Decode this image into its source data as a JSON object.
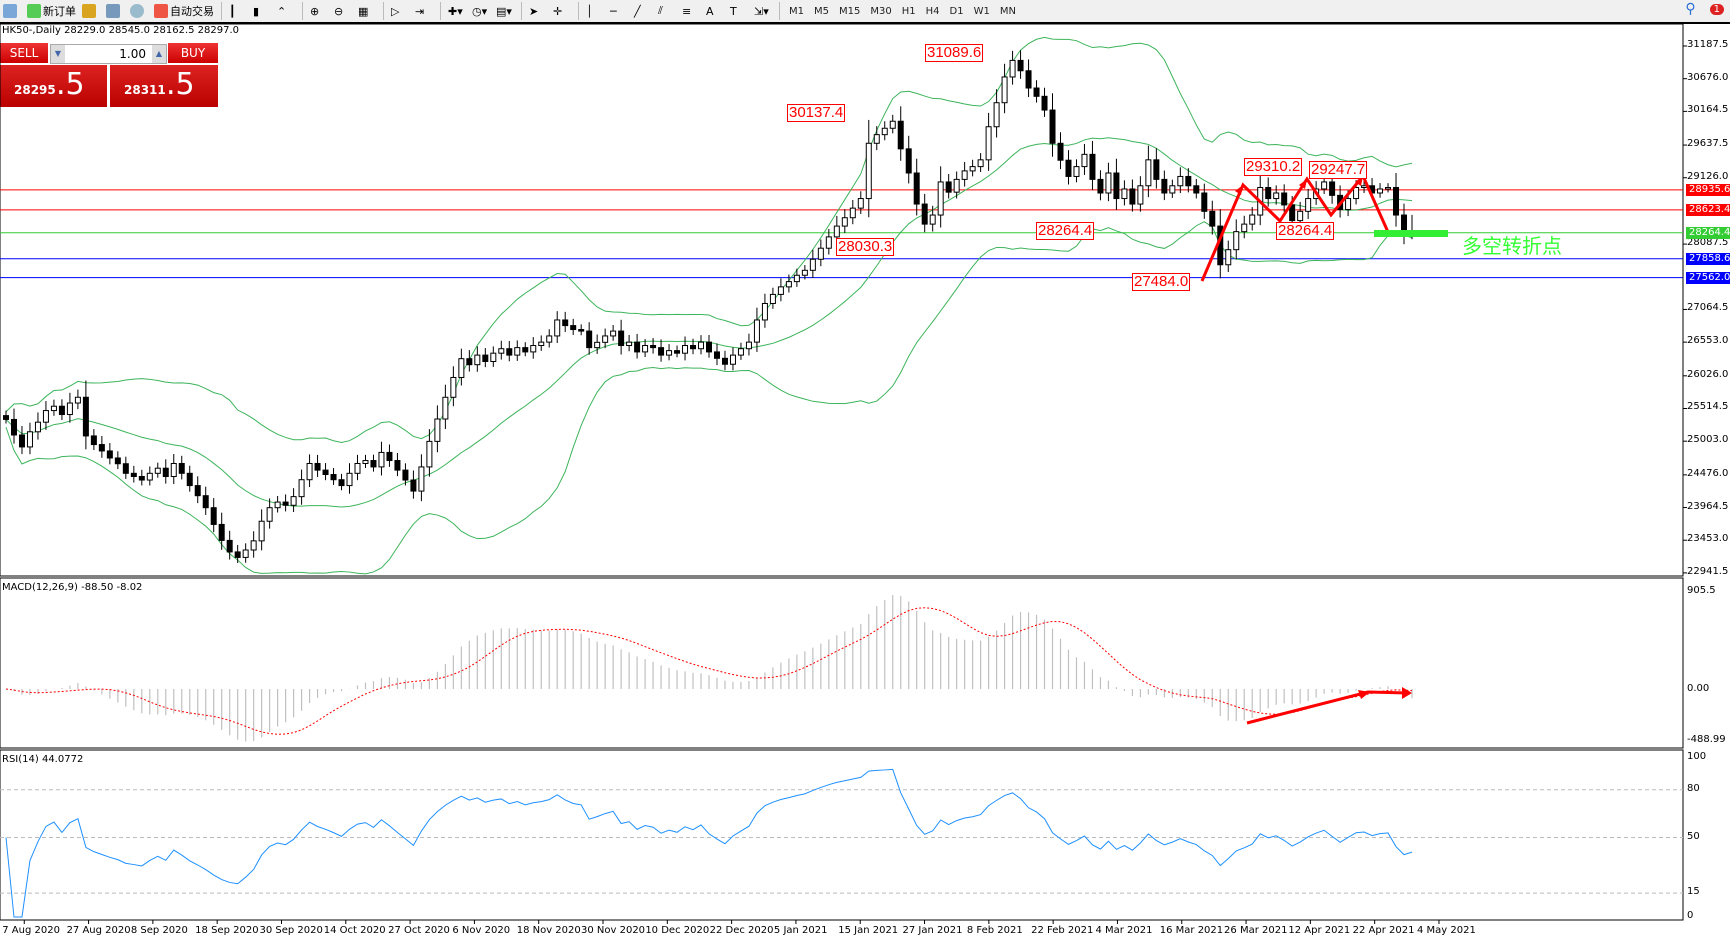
{
  "toolbar": {
    "new_order": "新订单",
    "auto_trading": "自动交易",
    "timeframes": [
      "M1",
      "M5",
      "M15",
      "M30",
      "H1",
      "H4",
      "D1",
      "W1",
      "MN"
    ],
    "notification_count": "1"
  },
  "chart_header": "HK50-,Daily  28229.0 28545.0 28162.5 28297.0",
  "trade_panel": {
    "sell_label": "SELL",
    "buy_label": "BUY",
    "lot": "1.00",
    "sell_big": "28295",
    "sell_small": ".5",
    "buy_big": "28311",
    "buy_small": ".5"
  },
  "colors": {
    "bull": "#ffffff",
    "bear": "#000000",
    "bands": "#3cb45a",
    "macd_signal": "#ff0000",
    "macd_hist": "#c0c0c0",
    "rsi": "#1e90ff",
    "annotation": "#ff0000"
  },
  "chart_data": {
    "type": "candlestick",
    "symbol": "HK50-",
    "timeframe": "Daily",
    "last_bar": {
      "open": 28229.0,
      "high": 28545.0,
      "low": 28162.5,
      "close": 28297.0
    },
    "closes": [
      25343,
      25100,
      24913,
      25150,
      25300,
      25482,
      25550,
      25420,
      25600,
      25690,
      25085,
      24950,
      24850,
      24740,
      24650,
      24500,
      24450,
      24395,
      24500,
      24580,
      24450,
      24654,
      24500,
      24308,
      24150,
      23962,
      23700,
      23450,
      23270,
      23184,
      23300,
      23443,
      23750,
      23962,
      24050,
      24000,
      24135,
      24400,
      24654,
      24550,
      24481,
      24400,
      24308,
      24500,
      24654,
      24700,
      24600,
      24827,
      24700,
      24550,
      24395,
      24222,
      24600,
      25000,
      25350,
      25690,
      26000,
      26294,
      26200,
      26350,
      26250,
      26380,
      26450,
      26350,
      26467,
      26400,
      26500,
      26553,
      26650,
      26900,
      26812,
      26750,
      26726,
      26467,
      26550,
      26650,
      26726,
      26500,
      26553,
      26400,
      26500,
      26467,
      26350,
      26420,
      26380,
      26500,
      26450,
      26553,
      26400,
      26300,
      26207,
      26350,
      26450,
      26553,
      26900,
      27158,
      27300,
      27418,
      27500,
      27600,
      27677,
      27850,
      28023,
      28200,
      28369,
      28500,
      28650,
      28800,
      29665,
      29800,
      29900,
      30010,
      29578,
      29200,
      28714,
      28400,
      28542,
      29060,
      28900,
      29100,
      29233,
      29300,
      29406,
      29924,
      30300,
      30703,
      30962,
      30800,
      30530,
      30400,
      30185,
      29665,
      29400,
      29146,
      29300,
      29492,
      29100,
      28887,
      29200,
      28800,
      28950,
      28714,
      29000,
      29406,
      29100,
      28887,
      29000,
      29146,
      29000,
      28887,
      28600,
      28369,
      27764,
      28000,
      28282,
      28400,
      28542,
      28973,
      28800,
      28887,
      28700,
      28455,
      28600,
      28800,
      28950,
      29060,
      28850,
      28628,
      28800,
      28973,
      29000,
      28887,
      28950,
      28973,
      28542,
      28229,
      28297
    ],
    "price_ticks": [
      "31187.5",
      "30676.0",
      "30164.5",
      "29637.5",
      "29126.0",
      "28087.5",
      "27064.5",
      "26553.0",
      "26026.0",
      "25514.5",
      "25003.0",
      "24476.0",
      "23964.5",
      "23453.0",
      "22941.5"
    ],
    "ylim": [
      22941.5,
      31187.5
    ],
    "time_ticks": [
      "7 Aug 2020",
      "27 Aug 2020",
      "8 Sep 2020",
      "18 Sep 2020",
      "30 Sep 2020",
      "14 Oct 2020",
      "27 Oct 2020",
      "6 Nov 2020",
      "18 Nov 2020",
      "30 Nov 2020",
      "10 Dec 2020",
      "22 Dec 2020",
      "5 Jan 2021",
      "15 Jan 2021",
      "27 Jan 2021",
      "8 Feb 2021",
      "22 Feb 2021",
      "4 Mar 2021",
      "16 Mar 2021",
      "26 Mar 2021",
      "12 Apr 2021",
      "22 Apr 2021",
      "4 May 2021"
    ],
    "hlines": [
      {
        "value": 28935.6,
        "label": "28935.6",
        "color": "#ff0000"
      },
      {
        "value": 28623.4,
        "label": "28623.4",
        "color": "#ff0000"
      },
      {
        "value": 28264.4,
        "label": "28264.4",
        "color": "#33cc33"
      },
      {
        "value": 27858.6,
        "label": "27858.6",
        "color": "#0000ff"
      },
      {
        "value": 27562.0,
        "label": "27562.0",
        "color": "#0000ff"
      }
    ],
    "annotations": [
      "31089.6",
      "30137.4",
      "28030.3",
      "28264.4",
      "27484.0",
      "29310.2",
      "28264.4",
      "29247.7"
    ],
    "turning_point_text": "多空转折点",
    "indicators": {
      "bollinger": "Bollinger Bands",
      "macd": {
        "label": "MACD(12,26,9) -88.50 -8.02",
        "ticks": [
          "905.5",
          "0.00",
          "-488.99"
        ],
        "range": [
          -488.99,
          905.5
        ]
      },
      "rsi": {
        "label": "RSI(14) 44.0772",
        "ticks": [
          "100",
          "80",
          "50",
          "15",
          "0"
        ],
        "levels": [
          80,
          50,
          15
        ]
      }
    }
  }
}
